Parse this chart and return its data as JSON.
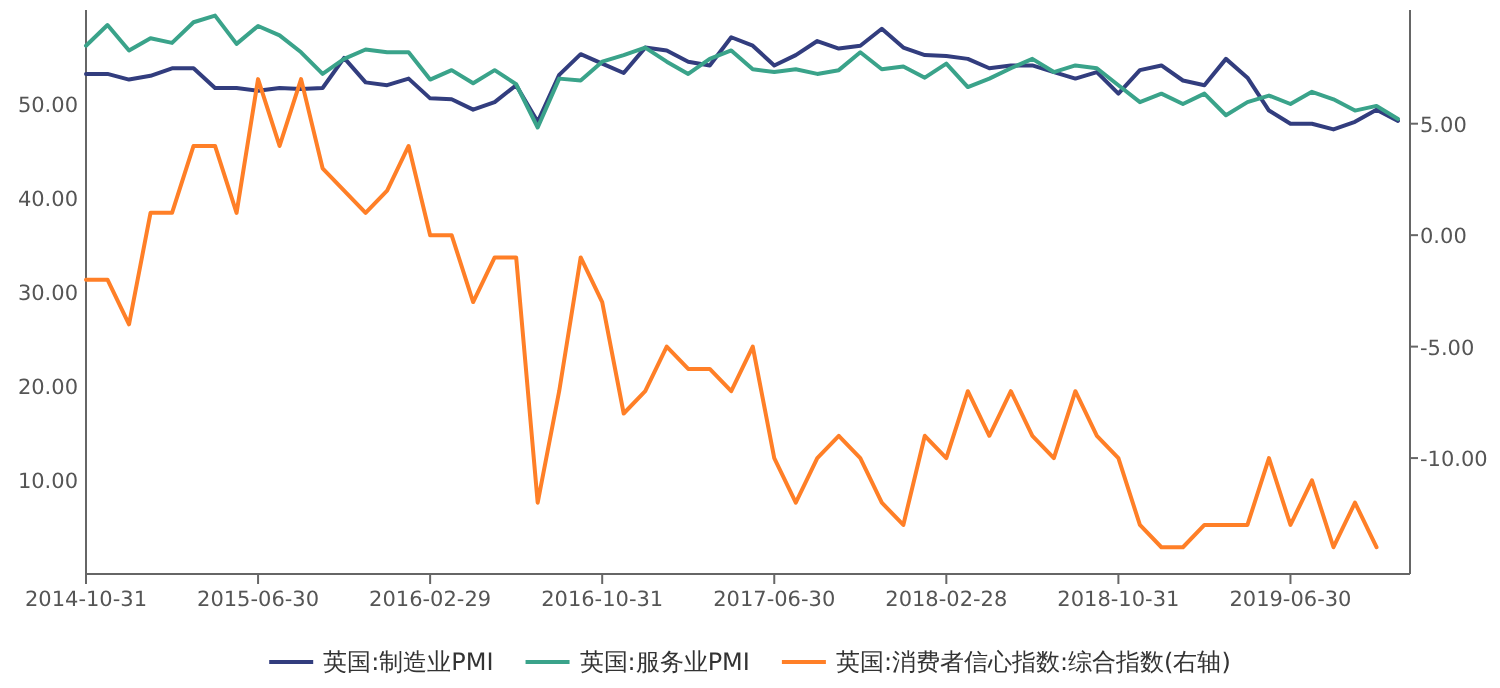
{
  "chart_data": {
    "type": "line",
    "categories": [
      "2014-10-31",
      null,
      null,
      null,
      null,
      null,
      null,
      null,
      "2015-06-30",
      null,
      null,
      null,
      null,
      null,
      null,
      null,
      "2016-02-29",
      null,
      null,
      null,
      null,
      null,
      null,
      null,
      "2016-10-31",
      null,
      null,
      null,
      null,
      null,
      null,
      null,
      "2017-06-30",
      null,
      null,
      null,
      null,
      null,
      null,
      null,
      "2018-02-28",
      null,
      null,
      null,
      null,
      null,
      null,
      null,
      "2018-10-31",
      null,
      null,
      null,
      null,
      null,
      null,
      null,
      "2019-06-30",
      null,
      null,
      null,
      null,
      null
    ],
    "series": [
      {
        "name": "英国:制造业PMI",
        "color": "#323d7e",
        "values": [
          53.2,
          53.2,
          52.6,
          53.0,
          53.8,
          53.8,
          51.7,
          51.7,
          51.4,
          51.7,
          51.6,
          51.7,
          54.9,
          52.3,
          52.0,
          52.7,
          50.6,
          50.5,
          49.4,
          50.2,
          52.0,
          48.1,
          53.1,
          55.3,
          54.3,
          53.3,
          56.0,
          55.7,
          54.5,
          54.1,
          57.1,
          56.2,
          54.1,
          55.2,
          56.7,
          55.9,
          56.2,
          58.0,
          56.0,
          55.2,
          55.1,
          54.8,
          53.8,
          54.1,
          54.1,
          53.4,
          52.7,
          53.4,
          51.1,
          53.6,
          54.1,
          52.5,
          52.0,
          54.8,
          52.8,
          49.3,
          47.9,
          47.9,
          47.3,
          48.1,
          49.4,
          48.2
        ]
      },
      {
        "name": "英国:服务业PMI",
        "color": "#3aa38a",
        "values": [
          56.2,
          58.4,
          55.7,
          57.0,
          56.5,
          58.7,
          59.4,
          56.4,
          58.3,
          57.3,
          55.5,
          53.2,
          54.8,
          55.8,
          55.5,
          55.5,
          52.6,
          53.6,
          52.2,
          53.6,
          52.1,
          47.5,
          52.7,
          52.5,
          54.5,
          55.2,
          56.0,
          54.5,
          53.2,
          54.8,
          55.7,
          53.7,
          53.4,
          53.7,
          53.2,
          53.6,
          55.5,
          53.7,
          54.0,
          52.8,
          54.3,
          51.8,
          52.7,
          53.8,
          54.8,
          53.4,
          54.1,
          53.8,
          52.0,
          50.2,
          51.1,
          50.0,
          51.1,
          48.8,
          50.2,
          50.9,
          50.0,
          51.3,
          50.5,
          49.3,
          49.8,
          48.4
        ]
      },
      {
        "name": "英国:消费者信心指数:综合指数(右轴)",
        "color": "#ff7f27",
        "axis": "y2",
        "values": [
          -2,
          -2,
          -4,
          1,
          1,
          4,
          4,
          1,
          7,
          4,
          7,
          3,
          2,
          1,
          2,
          4,
          0,
          0,
          -3,
          -1,
          -1,
          -12,
          -7,
          -1,
          -3,
          -8,
          -7,
          -5,
          -6,
          -6,
          -7,
          -5,
          -10,
          -12,
          -10,
          -9,
          -10,
          -12,
          -13,
          -9,
          -10,
          -7,
          -9,
          -7,
          -9,
          -10,
          -7,
          -9,
          -10,
          -13,
          -14,
          -14,
          -13,
          -13,
          -13,
          -10,
          -13,
          -11,
          -14,
          -12,
          -14,
          null
        ]
      }
    ],
    "ylim": [
      0,
      60
    ],
    "yticks": [
      {
        "value": 10,
        "label": "10.00"
      },
      {
        "value": 20,
        "label": "20.00"
      },
      {
        "value": 30,
        "label": "30.00"
      },
      {
        "value": 40,
        "label": "40.00"
      },
      {
        "value": 50,
        "label": "50.00"
      }
    ],
    "y2lim": [
      -15.2,
      10.1
    ],
    "y2ticks": [
      {
        "value": -10,
        "label": "-10.00"
      },
      {
        "value": -5,
        "label": "-5.00"
      },
      {
        "value": 0,
        "label": "0.00"
      },
      {
        "value": 5,
        "label": "5.00"
      }
    ],
    "legend": "bottom",
    "marker": "none",
    "line_style": "solid"
  }
}
